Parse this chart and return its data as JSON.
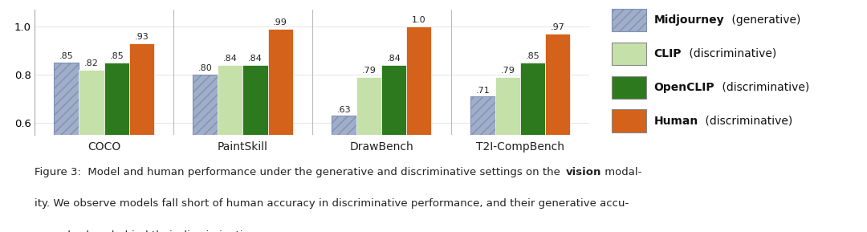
{
  "groups": [
    "COCO",
    "PaintSkill",
    "DrawBench",
    "T2I-CompBench"
  ],
  "series": {
    "Midjourney (generative)": [
      0.85,
      0.8,
      0.63,
      0.71
    ],
    "CLIP (discriminative)": [
      0.82,
      0.84,
      0.79,
      0.79
    ],
    "OpenCLIP (discriminative)": [
      0.85,
      0.84,
      0.84,
      0.85
    ],
    "Human (discriminative)": [
      0.93,
      0.99,
      1.0,
      0.97
    ]
  },
  "colors": {
    "Midjourney (generative)": "#a0aec8",
    "CLIP (discriminative)": "#c5e0a8",
    "OpenCLIP (discriminative)": "#2d7a1e",
    "Human (discriminative)": "#d4621a"
  },
  "hatch": {
    "Midjourney (generative)": "///",
    "CLIP (discriminative)": "",
    "OpenCLIP (discriminative)": "",
    "Human (discriminative)": ""
  },
  "midjourney_edge": "#8090b8",
  "ylim": [
    0.55,
    1.07
  ],
  "yticks": [
    0.6,
    0.8,
    1.0
  ],
  "bar_width": 0.18,
  "legend_items": [
    {
      "bold": "Midjourney",
      "rest": " (generative)",
      "key": "Midjourney (generative)"
    },
    {
      "bold": "CLIP",
      "rest": " (discriminative)",
      "key": "CLIP (discriminative)"
    },
    {
      "bold": "OpenCLIP",
      "rest": " (discriminative)",
      "key": "OpenCLIP (discriminative)"
    },
    {
      "bold": "Human",
      "rest": " (discriminative)",
      "key": "Human (discriminative)"
    }
  ],
  "bg_color": "#ffffff"
}
